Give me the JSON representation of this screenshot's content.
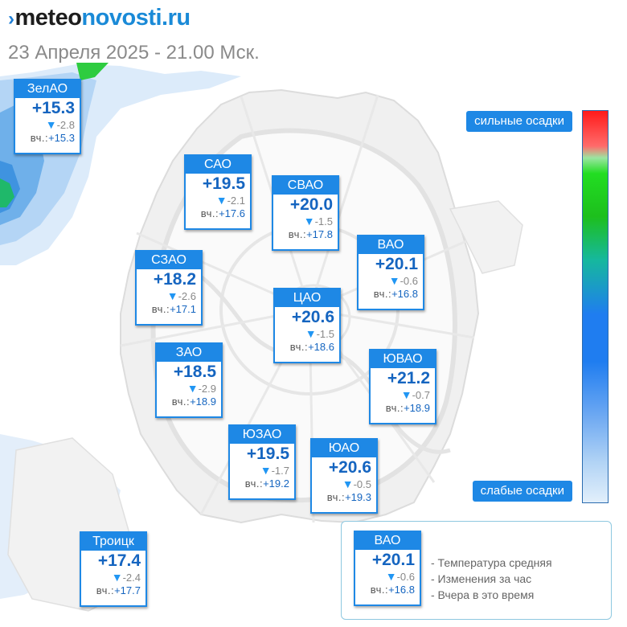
{
  "logo": {
    "part1": "meteo",
    "part2": "novosti.ru"
  },
  "subtitle": "23 Апреля 2025 - 21.00 Мск.",
  "yesterday_label": "вч.:",
  "districts": [
    {
      "name": "ЗелАО",
      "temp": "+15.3",
      "change": "-2.8",
      "yesterday": "+15.3"
    },
    {
      "name": "САО",
      "temp": "+19.5",
      "change": "-2.1",
      "yesterday": "+17.6"
    },
    {
      "name": "СВАО",
      "temp": "+20.0",
      "change": "-1.5",
      "yesterday": "+17.8"
    },
    {
      "name": "ВАО",
      "temp": "+20.1",
      "change": "-0.6",
      "yesterday": "+16.8"
    },
    {
      "name": "СЗАО",
      "temp": "+18.2",
      "change": "-2.6",
      "yesterday": "+17.1"
    },
    {
      "name": "ЦАО",
      "temp": "+20.6",
      "change": "-1.5",
      "yesterday": "+18.6"
    },
    {
      "name": "ЗАО",
      "temp": "+18.5",
      "change": "-2.9",
      "yesterday": "+18.9"
    },
    {
      "name": "ЮВАО",
      "temp": "+21.2",
      "change": "-0.7",
      "yesterday": "+18.9"
    },
    {
      "name": "ЮЗАО",
      "temp": "+19.5",
      "change": "-1.7",
      "yesterday": "+19.2"
    },
    {
      "name": "ЮАО",
      "temp": "+20.6",
      "change": "-0.5",
      "yesterday": "+19.3"
    },
    {
      "name": "Троицк",
      "temp": "+17.4",
      "change": "-2.4",
      "yesterday": "+17.7"
    }
  ],
  "precip_legend": {
    "strong": "сильные осадки",
    "weak": "слабые осадки"
  },
  "legend": {
    "sample": {
      "name": "ВАО",
      "temp": "+20.1",
      "change": "-0.6",
      "yesterday": "+16.8"
    },
    "lines": [
      "- Температура средняя",
      "- Изменения за час",
      "- Вчера в это время"
    ]
  },
  "colors": {
    "accent": "#1e88e5",
    "temp_text": "#1565c0",
    "change_arrow": "#2196f3"
  }
}
